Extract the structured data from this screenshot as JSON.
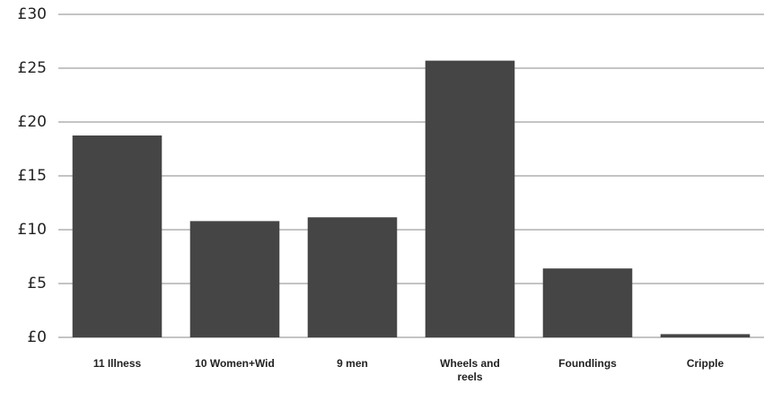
{
  "chart_data": {
    "type": "bar",
    "categories": [
      "11 Illness",
      "10 Women+Wid",
      "9 men",
      "Wheels and reels",
      "Foundlings",
      "Cripple"
    ],
    "values": [
      18.75,
      10.8,
      11.15,
      25.7,
      6.4,
      0.3
    ],
    "color": "#454545",
    "ylim": [
      0,
      30
    ],
    "yticks": [
      {
        "value": 0,
        "label": "£0"
      },
      {
        "value": 5,
        "label": "£5"
      },
      {
        "value": 10,
        "label": "£10"
      },
      {
        "value": 15,
        "label": "£15"
      },
      {
        "value": 20,
        "label": "£20"
      },
      {
        "value": 25,
        "label": "£25"
      },
      {
        "value": 30,
        "label": "£30"
      }
    ],
    "grid": true
  }
}
